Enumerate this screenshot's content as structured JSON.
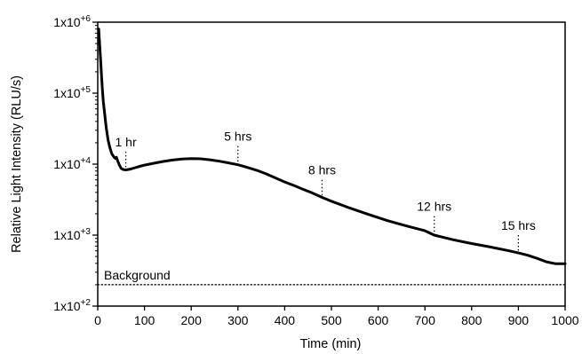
{
  "chart_data": {
    "type": "line",
    "xlabel": "Time (min)",
    "ylabel": "Relative Light Intensity (RLU/s)",
    "xlim": [
      0,
      1000
    ],
    "ylim": [
      100,
      1000000
    ],
    "yscale": "log",
    "grid": false,
    "legend": "none",
    "x_ticks": [
      0,
      100,
      200,
      300,
      400,
      500,
      600,
      700,
      800,
      900,
      1000
    ],
    "x_tick_labels": [
      "0",
      "100",
      "200",
      "300",
      "400",
      "500",
      "600",
      "700",
      "800",
      "900",
      "1000"
    ],
    "y_ticks": [
      100,
      1000,
      10000,
      100000,
      1000000
    ],
    "y_tick_labels": [
      {
        "base": "1x10",
        "exp": "+2"
      },
      {
        "base": "1x10",
        "exp": "+3"
      },
      {
        "base": "1x10",
        "exp": "+4"
      },
      {
        "base": "1x10",
        "exp": "+5"
      },
      {
        "base": "1x10",
        "exp": "+6"
      }
    ],
    "series": [
      {
        "color": "#000000",
        "x": [
          2,
          4,
          6,
          8,
          10,
          12,
          15,
          18,
          22,
          26,
          30,
          35,
          38,
          40,
          43,
          46,
          50,
          55,
          60,
          70,
          80,
          90,
          100,
          120,
          140,
          160,
          180,
          200,
          220,
          240,
          260,
          280,
          300,
          320,
          340,
          360,
          380,
          400,
          420,
          440,
          460,
          480,
          500,
          540,
          580,
          620,
          660,
          700,
          720,
          760,
          800,
          840,
          880,
          900,
          920,
          940,
          960,
          980,
          1000
        ],
        "y": [
          800000,
          500000,
          300000,
          180000,
          110000,
          75000,
          50000,
          33000,
          22000,
          17000,
          14000,
          12500,
          12000,
          12500,
          11000,
          9800,
          8700,
          8400,
          8300,
          8500,
          8900,
          9300,
          9700,
          10300,
          10900,
          11400,
          11800,
          12000,
          11900,
          11500,
          11000,
          10400,
          9800,
          9000,
          8200,
          7300,
          6400,
          5600,
          5000,
          4400,
          3900,
          3400,
          3000,
          2400,
          1950,
          1600,
          1350,
          1150,
          1000,
          860,
          760,
          680,
          600,
          560,
          520,
          470,
          420,
          395,
          395
        ]
      },
      {
        "name": "Background",
        "style": "dotted",
        "color": "#000000",
        "x": [
          0,
          1000
        ],
        "y": [
          200,
          200
        ]
      }
    ],
    "annotations": [
      {
        "text": "1 hr",
        "x": 60,
        "y_top": 15000,
        "y_bottom": 8300
      },
      {
        "text": "5 hrs",
        "x": 300,
        "y_top": 18000,
        "y_bottom": 9800
      },
      {
        "text": "8 hrs",
        "x": 480,
        "y_top": 6000,
        "y_bottom": 3400
      },
      {
        "text": "12 hrs",
        "x": 720,
        "y_top": 1850,
        "y_bottom": 1000
      },
      {
        "text": "15 hrs",
        "x": 900,
        "y_top": 1000,
        "y_bottom": 560
      }
    ]
  }
}
